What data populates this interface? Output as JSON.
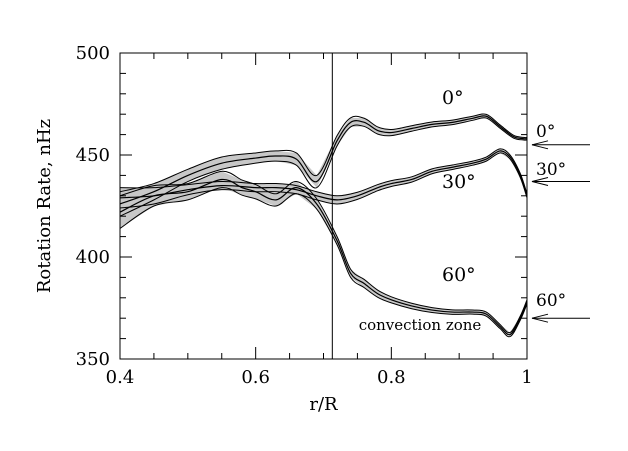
{
  "chart_data": {
    "type": "line",
    "title": "",
    "xlabel": "r/R",
    "ylabel": "Rotation Rate, nHz",
    "xlim": [
      0.4,
      1.0
    ],
    "ylim": [
      350,
      500
    ],
    "x_ticks": [
      {
        "value": 0.4,
        "label": "0.4"
      },
      {
        "value": 0.6,
        "label": "0.6"
      },
      {
        "value": 0.8,
        "label": "0.8"
      },
      {
        "value": 1.0,
        "label": "1"
      }
    ],
    "y_ticks": [
      {
        "value": 350,
        "label": "350"
      },
      {
        "value": 400,
        "label": "400"
      },
      {
        "value": 450,
        "label": "450"
      },
      {
        "value": 500,
        "label": "500"
      }
    ],
    "grid": false,
    "band_color": "#c8c8c8",
    "line_color": "#000000",
    "series": [
      {
        "name": "0°",
        "points": [
          [
            0.4,
            426
          ],
          [
            0.45,
            432
          ],
          [
            0.5,
            440
          ],
          [
            0.55,
            446
          ],
          [
            0.6,
            448.5
          ],
          [
            0.63,
            449.5
          ],
          [
            0.66,
            448
          ],
          [
            0.69,
            437
          ],
          [
            0.72,
            457
          ],
          [
            0.74,
            466
          ],
          [
            0.76,
            466
          ],
          [
            0.78,
            462
          ],
          [
            0.8,
            461
          ],
          [
            0.83,
            463
          ],
          [
            0.86,
            465
          ],
          [
            0.89,
            466
          ],
          [
            0.92,
            468
          ],
          [
            0.94,
            469
          ],
          [
            0.96,
            464
          ],
          [
            0.98,
            459
          ],
          [
            0.995,
            458
          ],
          [
            1.0,
            458
          ]
        ],
        "band": [
          [
            0.4,
            6
          ],
          [
            0.45,
            4
          ],
          [
            0.5,
            3
          ],
          [
            0.55,
            3
          ],
          [
            0.6,
            2.5
          ],
          [
            0.63,
            2.5
          ],
          [
            0.66,
            3
          ],
          [
            0.69,
            3
          ],
          [
            0.72,
            2.5
          ],
          [
            0.76,
            2
          ],
          [
            0.8,
            1.5
          ],
          [
            0.86,
            1.2
          ],
          [
            0.92,
            1
          ],
          [
            0.96,
            0.8
          ],
          [
            1.0,
            0.6
          ]
        ]
      },
      {
        "name": "30°",
        "points": [
          [
            0.4,
            429
          ],
          [
            0.45,
            430
          ],
          [
            0.5,
            433
          ],
          [
            0.55,
            435
          ],
          [
            0.6,
            434
          ],
          [
            0.63,
            434
          ],
          [
            0.66,
            433
          ],
          [
            0.69,
            430
          ],
          [
            0.72,
            428
          ],
          [
            0.75,
            430
          ],
          [
            0.78,
            434
          ],
          [
            0.8,
            436
          ],
          [
            0.83,
            438
          ],
          [
            0.86,
            442
          ],
          [
            0.89,
            444
          ],
          [
            0.92,
            446
          ],
          [
            0.94,
            448
          ],
          [
            0.96,
            452
          ],
          [
            0.975,
            449
          ],
          [
            0.99,
            440
          ],
          [
            1.0,
            430
          ]
        ],
        "band": [
          [
            0.4,
            5
          ],
          [
            0.45,
            4
          ],
          [
            0.5,
            2.5
          ],
          [
            0.55,
            2
          ],
          [
            0.6,
            2
          ],
          [
            0.66,
            2
          ],
          [
            0.72,
            2
          ],
          [
            0.78,
            1.5
          ],
          [
            0.86,
            1.2
          ],
          [
            0.92,
            1
          ],
          [
            0.96,
            1
          ],
          [
            1.0,
            1
          ]
        ]
      },
      {
        "name": "60°",
        "points": [
          [
            0.4,
            422
          ],
          [
            0.45,
            430
          ],
          [
            0.5,
            432
          ],
          [
            0.55,
            438
          ],
          [
            0.58,
            434
          ],
          [
            0.6,
            432
          ],
          [
            0.63,
            428
          ],
          [
            0.66,
            434
          ],
          [
            0.69,
            426
          ],
          [
            0.72,
            408
          ],
          [
            0.74,
            392
          ],
          [
            0.76,
            387
          ],
          [
            0.78,
            382
          ],
          [
            0.8,
            379
          ],
          [
            0.83,
            376
          ],
          [
            0.86,
            374
          ],
          [
            0.89,
            373
          ],
          [
            0.92,
            373
          ],
          [
            0.94,
            372
          ],
          [
            0.96,
            366
          ],
          [
            0.975,
            362
          ],
          [
            0.99,
            370
          ],
          [
            1.0,
            378
          ]
        ],
        "band": [
          [
            0.4,
            8
          ],
          [
            0.45,
            5
          ],
          [
            0.5,
            4
          ],
          [
            0.55,
            4
          ],
          [
            0.6,
            3.5
          ],
          [
            0.63,
            3
          ],
          [
            0.66,
            3
          ],
          [
            0.69,
            2.5
          ],
          [
            0.72,
            2
          ],
          [
            0.76,
            2
          ],
          [
            0.8,
            1.5
          ],
          [
            0.86,
            1.2
          ],
          [
            0.92,
            1
          ],
          [
            0.96,
            1
          ],
          [
            1.0,
            1
          ]
        ]
      }
    ],
    "annotations": {
      "convection_zone_boundary_x": 0.713,
      "convection_zone_text": "convection zone",
      "surface_rates": [
        {
          "label": "0°",
          "value": 455
        },
        {
          "label": "30°",
          "value": 437
        },
        {
          "label": "60°",
          "value": 370
        }
      ]
    }
  }
}
